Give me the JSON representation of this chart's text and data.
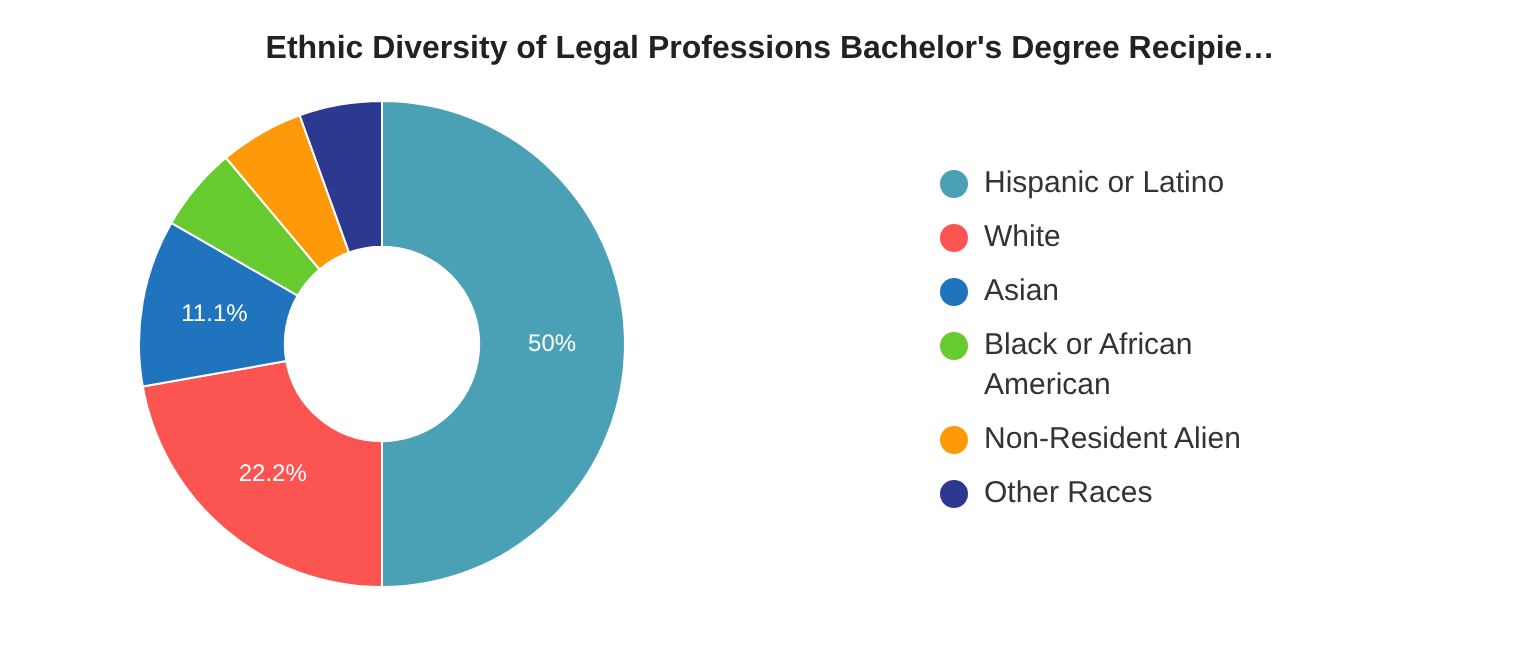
{
  "chart_data": {
    "type": "donut",
    "title": "Ethnic Diversity of Legal Professions Bachelor's Degree Recipie…",
    "categories": [
      "Hispanic or Latino",
      "White",
      "Asian",
      "Black or African American",
      "Non-Resident Alien",
      "Other Races"
    ],
    "values": [
      50,
      22.2,
      11.1,
      5.6,
      5.6,
      5.5
    ],
    "colors": [
      "#4aa0b5",
      "#fc5451",
      "#1f74bd",
      "#65cb2f",
      "#fe9a0a",
      "#2b3990"
    ],
    "value_labels": [
      "50%",
      "22.2%",
      "11.1%",
      null,
      null,
      null
    ],
    "legend": "right"
  }
}
